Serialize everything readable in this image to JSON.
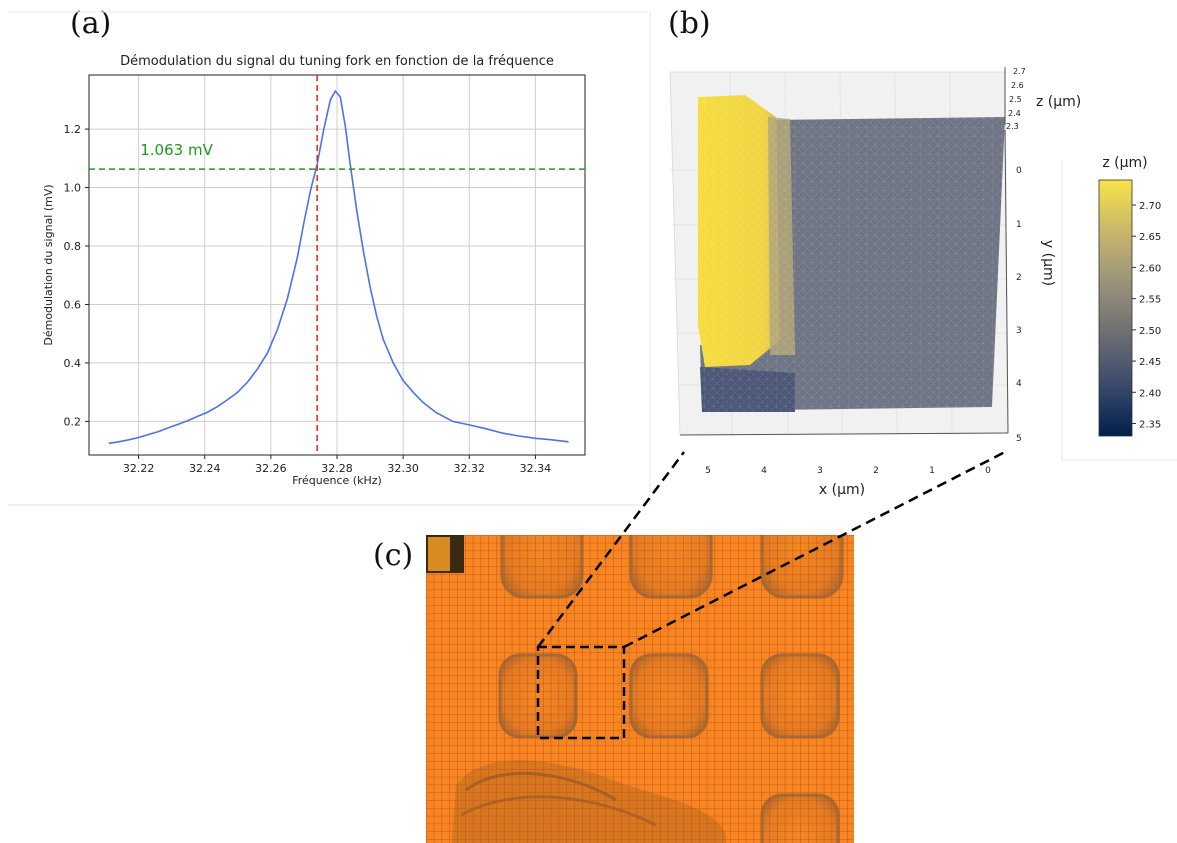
{
  "panels": {
    "a": "(a)",
    "b": "(b)",
    "c": "(c)"
  },
  "chart_data": [
    {
      "type": "line",
      "title": "Démodulation du signal du tuning fork en fonction de la fréquence",
      "xlabel": "Fréquence (kHz)",
      "ylabel": "Démodulation du signal (mV)",
      "xlim": [
        32.205,
        32.355
      ],
      "ylim": [
        0.085,
        1.385
      ],
      "grid": true,
      "x_ticks": [
        "32.22",
        "32.24",
        "32.26",
        "32.28",
        "32.30",
        "32.32",
        "32.34"
      ],
      "y_ticks": [
        "0.2",
        "0.4",
        "0.6",
        "0.8",
        "1.0",
        "1.2"
      ],
      "series": [
        {
          "color": "#4c72e6",
          "x": [
            32.211,
            32.214,
            32.217,
            32.22,
            32.223,
            32.226,
            32.229,
            32.232,
            32.235,
            32.238,
            32.241,
            32.244,
            32.247,
            32.25,
            32.253,
            32.256,
            32.259,
            32.262,
            32.265,
            32.268,
            32.27,
            32.272,
            32.274,
            32.276,
            32.278,
            32.2795,
            32.281,
            32.2825,
            32.284,
            32.286,
            32.288,
            32.29,
            32.292,
            32.294,
            32.297,
            32.3,
            32.303,
            32.306,
            32.31,
            32.315,
            32.32,
            32.325,
            32.33,
            32.335,
            32.34,
            32.345,
            32.35
          ],
          "y": [
            0.125,
            0.13,
            0.137,
            0.145,
            0.155,
            0.165,
            0.178,
            0.19,
            0.203,
            0.218,
            0.232,
            0.252,
            0.275,
            0.3,
            0.335,
            0.38,
            0.435,
            0.515,
            0.62,
            0.76,
            0.88,
            0.99,
            1.08,
            1.2,
            1.3,
            1.33,
            1.31,
            1.21,
            1.08,
            0.92,
            0.78,
            0.66,
            0.56,
            0.48,
            0.4,
            0.34,
            0.3,
            0.265,
            0.23,
            0.2,
            0.188,
            0.175,
            0.16,
            0.15,
            0.142,
            0.137,
            0.13
          ]
        }
      ],
      "annotations": [
        {
          "type": "hline",
          "y": 1.063,
          "color": "#1e9b1e",
          "label": "1.063 mV"
        },
        {
          "type": "vline",
          "x": 32.274,
          "color": "#e8231e"
        }
      ]
    },
    {
      "type": "surface",
      "xlabel": "x (µm)",
      "ylabel": "y (µm)",
      "zlabel": "z (µm)",
      "x_ticks": [
        "5",
        "4",
        "3",
        "2",
        "1",
        "0"
      ],
      "y_ticks": [
        "0",
        "1",
        "2",
        "3",
        "4",
        "5"
      ],
      "z_ticks": [
        "2.7",
        "2.6",
        "2.5",
        "2.4",
        "2.3"
      ],
      "colorbar": {
        "label": "z (µm)",
        "range": [
          2.33,
          2.74
        ],
        "ticks": [
          "2.70",
          "2.65",
          "2.60",
          "2.55",
          "2.50",
          "2.45",
          "2.40",
          "2.35"
        ],
        "colormap": [
          "#00204c",
          "#3b4a6d",
          "#6c6e72",
          "#9a937a",
          "#c9b76a",
          "#f8e34a"
        ]
      },
      "regions": [
        {
          "name": "raised step",
          "z": 2.72,
          "color": "#f5dc3e"
        },
        {
          "name": "base",
          "z": 2.55,
          "color": "#6e7384"
        },
        {
          "name": "lower edge",
          "z": 2.46,
          "color": "#4b5677"
        }
      ]
    }
  ],
  "photo": {
    "background": "#f4871f",
    "grid_color": "#d63a2a",
    "pad_color": "#c8731e"
  }
}
